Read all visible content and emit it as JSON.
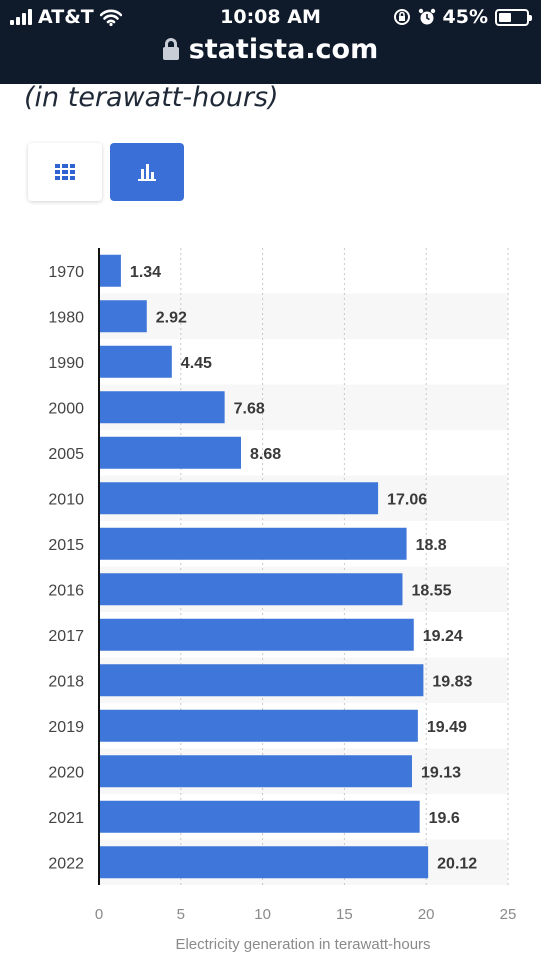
{
  "status_bar": {
    "carrier": "AT&T",
    "time": "10:08 AM",
    "battery": "45%",
    "battery_level": 0.45
  },
  "url_bar": {
    "domain": "statista.com"
  },
  "chart_header": {
    "subtitle": "(in terawatt-hours)"
  },
  "view_toggle": {
    "table_icon": "grid-icon",
    "chart_icon": "bar-chart-icon",
    "active": "chart"
  },
  "colors": {
    "bar": "#3f76d9",
    "toggle_active": "#3b6fd8",
    "status_bg": "#0f1a2b"
  },
  "chart_data": {
    "type": "bar",
    "orientation": "horizontal",
    "categories": [
      "1970",
      "1980",
      "1990",
      "2000",
      "2005",
      "2010",
      "2015",
      "2016",
      "2017",
      "2018",
      "2019",
      "2020",
      "2021",
      "2022"
    ],
    "values": [
      1.34,
      2.92,
      4.45,
      7.68,
      8.68,
      17.06,
      18.8,
      18.55,
      19.24,
      19.83,
      19.49,
      19.13,
      19.6,
      20.12
    ],
    "value_labels": [
      "1.34",
      "2.92",
      "4.45",
      "7.68",
      "8.68",
      "17.06",
      "18.8",
      "18.55",
      "19.24",
      "19.83",
      "19.49",
      "19.13",
      "19.6",
      "20.12"
    ],
    "xlabel": "Electricity generation in terawatt-hours",
    "xlim": [
      0,
      25
    ],
    "xticks": [
      "0",
      "5",
      "10",
      "15",
      "20",
      "25"
    ],
    "grid": "vertical-dotted"
  }
}
